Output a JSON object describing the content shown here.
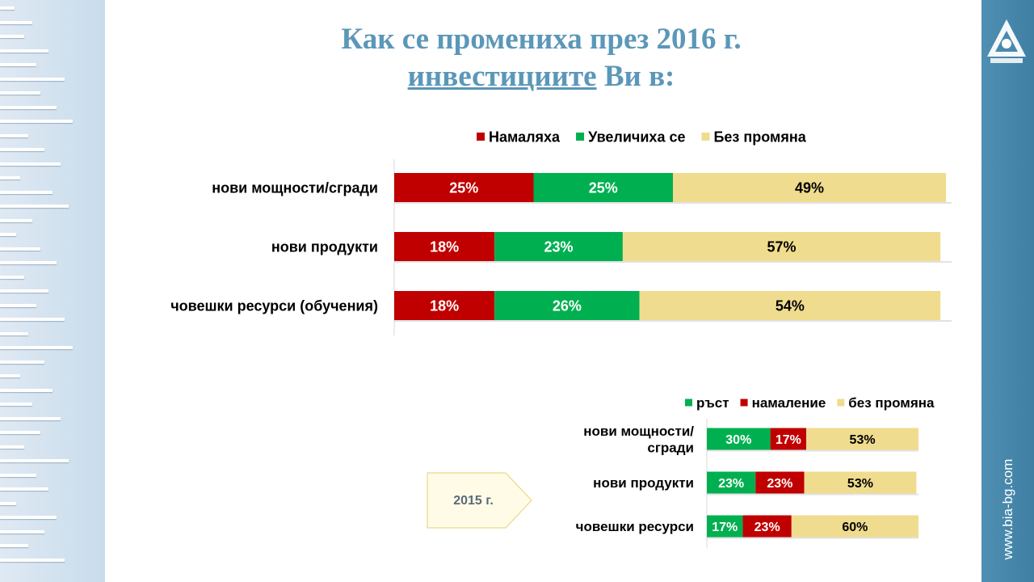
{
  "title": {
    "line1": "Как се промениха през 2016 г.",
    "line2_underlined": "инвестициите",
    "line2_rest": " Ви в:"
  },
  "side": {
    "url": "www.bia-bg.com"
  },
  "badge_2015": "2015 г.",
  "colors": {
    "red": "#c00000",
    "green": "#00b050",
    "tan": "#f0dc8e",
    "title": "#5b97b8",
    "sidebar": "#4a89ad"
  },
  "icons": [
    "bia-logo-icon"
  ],
  "chart_data": [
    {
      "type": "bar",
      "orientation": "horizontal",
      "stacked": true,
      "categories": [
        "нови мощности/сгради",
        "нови продукти",
        "човешки ресурси (обучения)"
      ],
      "series": [
        {
          "name": "Намаляха",
          "color": "#c00000",
          "values": [
            25,
            18,
            18
          ],
          "labels": [
            "25%",
            "18%",
            "18%"
          ]
        },
        {
          "name": "Увеличиха се",
          "color": "#00b050",
          "values": [
            25,
            23,
            26
          ],
          "labels": [
            "25%",
            "23%",
            "26%"
          ]
        },
        {
          "name": "Без промяна",
          "color": "#f0dc8e",
          "values": [
            49,
            57,
            54
          ],
          "labels": [
            "49%",
            "57%",
            "54%"
          ]
        }
      ],
      "legend_position": "top",
      "xlim": [
        0,
        100
      ],
      "grid": false
    },
    {
      "type": "bar",
      "orientation": "horizontal",
      "stacked": true,
      "categories": [
        [
          "нови мощности/",
          "сгради"
        ],
        [
          "нови продукти"
        ],
        [
          "човешки ресурси"
        ]
      ],
      "series": [
        {
          "name": "ръст",
          "color": "#00b050",
          "values": [
            30,
            23,
            17
          ],
          "labels": [
            "30%",
            "23%",
            "17%"
          ]
        },
        {
          "name": "намаление",
          "color": "#c00000",
          "values": [
            17,
            23,
            23
          ],
          "labels": [
            "17%",
            "23%",
            "23%"
          ]
        },
        {
          "name": "без промяна",
          "color": "#f0dc8e",
          "values": [
            53,
            53,
            60
          ],
          "labels": [
            "53%",
            "53%",
            "60%"
          ]
        }
      ],
      "legend_position": "top",
      "xlim": [
        0,
        100
      ],
      "grid": false
    }
  ]
}
